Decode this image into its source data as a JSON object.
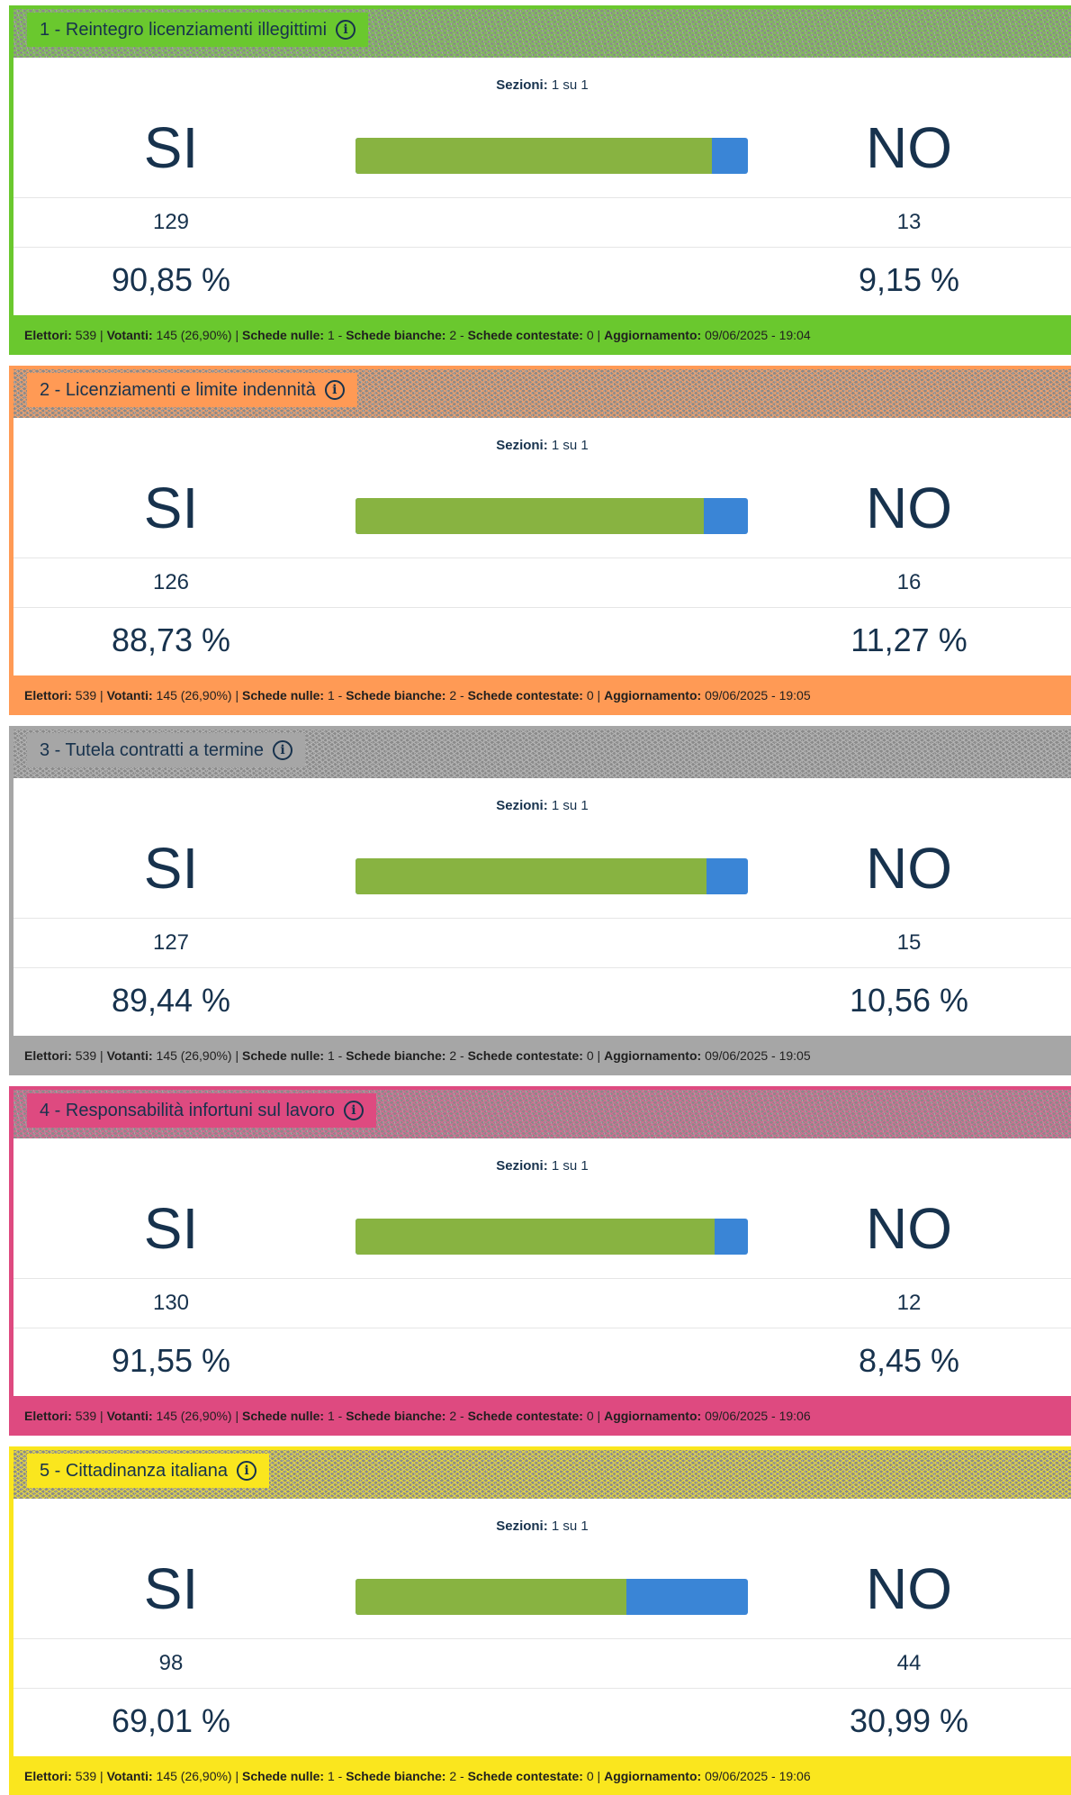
{
  "labels": {
    "sezioni": "Sezioni:",
    "si": "SI",
    "no": "NO",
    "elettori": "Elettori:",
    "votanti": "Votanti:",
    "schede_nulle": "Schede nulle:",
    "schede_bianche": "Schede bianche:",
    "schede_contestate": "Schede contestate:",
    "aggiornamento": "Aggiornamento:"
  },
  "colors": {
    "green_bar": "#88b341",
    "blue_bar": "#3a85d6",
    "text": "#17324d"
  },
  "icons": {
    "info": "info-circle-icon"
  },
  "referendums": [
    {
      "title": "1 - Reintegro licenziamenti illegittimi",
      "accent": "#6ac82e",
      "hatch": "#7ec94e",
      "sezioni": "1 su 1",
      "si_votes": "129",
      "no_votes": "13",
      "si_pct": "90,85 %",
      "no_pct": "9,15 %",
      "si_fraction": 0.9085,
      "footer": {
        "elettori": "539",
        "votanti": "145 (26,90%)",
        "schede_nulle": "1",
        "schede_bianche": "2",
        "schede_contestate": "0",
        "aggiornamento": "09/06/2025 - 19:04"
      }
    },
    {
      "title": "2 - Licenziamenti e limite indennità",
      "accent": "#ff9a55",
      "hatch": "#f3a06a",
      "sezioni": "1 su 1",
      "si_votes": "126",
      "no_votes": "16",
      "si_pct": "88,73 %",
      "no_pct": "11,27 %",
      "si_fraction": 0.8873,
      "footer": {
        "elettori": "539",
        "votanti": "145 (26,90%)",
        "schede_nulle": "1",
        "schede_bianche": "2",
        "schede_contestate": "0",
        "aggiornamento": "09/06/2025 - 19:05"
      }
    },
    {
      "title": "3 - Tutela contratti a termine",
      "accent": "#a6a6a6",
      "hatch": "#b4b4b4",
      "sezioni": "1 su 1",
      "si_votes": "127",
      "no_votes": "15",
      "si_pct": "89,44 %",
      "no_pct": "10,56 %",
      "si_fraction": 0.8944,
      "footer": {
        "elettori": "539",
        "votanti": "145 (26,90%)",
        "schede_nulle": "1",
        "schede_bianche": "2",
        "schede_contestate": "0",
        "aggiornamento": "09/06/2025 - 19:05"
      }
    },
    {
      "title": "4 - Responsabilità infortuni sul lavoro",
      "accent": "#de4a80",
      "hatch": "#d86a92",
      "sezioni": "1 su 1",
      "si_votes": "130",
      "no_votes": "12",
      "si_pct": "91,55 %",
      "no_pct": "8,45 %",
      "si_fraction": 0.9155,
      "footer": {
        "elettori": "539",
        "votanti": "145 (26,90%)",
        "schede_nulle": "1",
        "schede_bianche": "2",
        "schede_contestate": "0",
        "aggiornamento": "09/06/2025 - 19:06"
      }
    },
    {
      "title": "5 - Cittadinanza italiana",
      "accent": "#fae61e",
      "hatch": "#e8da3c",
      "sezioni": "1 su 1",
      "si_votes": "98",
      "no_votes": "44",
      "si_pct": "69,01 %",
      "no_pct": "30,99 %",
      "si_fraction": 0.6901,
      "footer": {
        "elettori": "539",
        "votanti": "145 (26,90%)",
        "schede_nulle": "1",
        "schede_bianche": "2",
        "schede_contestate": "0",
        "aggiornamento": "09/06/2025 - 19:06"
      }
    }
  ]
}
